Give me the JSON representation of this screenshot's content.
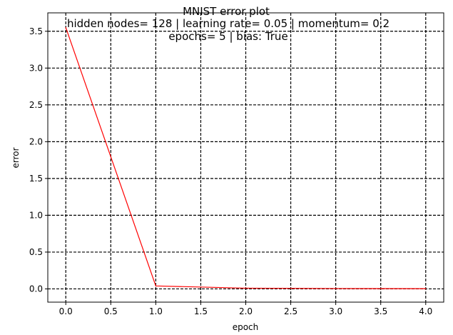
{
  "chart_data": {
    "type": "line",
    "title": "MNIST error plot",
    "subtitle_line1": "hidden nodes= 128 | learning rate= 0.05 | momentum= 0.2",
    "subtitle_line2": "epochs= 5 | bias: True",
    "xlabel": "epoch",
    "ylabel": "error",
    "xlim": [
      -0.2,
      4.2
    ],
    "ylim": [
      -0.18,
      3.75
    ],
    "xticks": [
      0.0,
      0.5,
      1.0,
      1.5,
      2.0,
      2.5,
      3.0,
      3.5,
      4.0
    ],
    "xtick_labels": [
      "0.0",
      "0.5",
      "1.0",
      "1.5",
      "2.0",
      "2.5",
      "3.0",
      "3.5",
      "4.0"
    ],
    "yticks": [
      0.0,
      0.5,
      1.0,
      1.5,
      2.0,
      2.5,
      3.0,
      3.5
    ],
    "ytick_labels": [
      "0.0",
      "0.5",
      "1.0",
      "1.5",
      "2.0",
      "2.5",
      "3.0",
      "3.5"
    ],
    "grid": true,
    "series": [
      {
        "color": "#ff0000",
        "x": [
          0,
          1,
          2,
          3,
          4
        ],
        "y": [
          3.55,
          0.04,
          0.01,
          0.005,
          0.003
        ]
      }
    ]
  }
}
